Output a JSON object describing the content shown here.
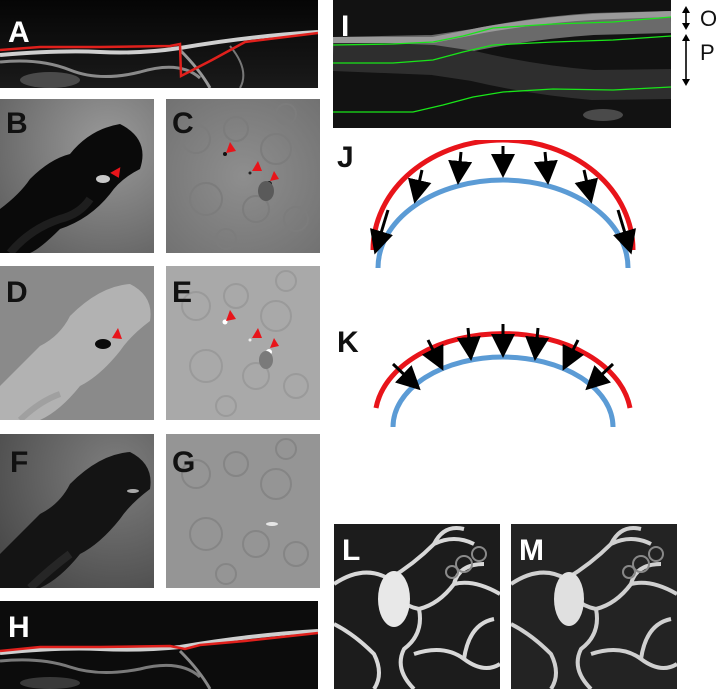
{
  "labels": {
    "A": "A",
    "B": "B",
    "C": "C",
    "D": "D",
    "E": "E",
    "F": "F",
    "G": "G",
    "H": "H",
    "I": "I",
    "J": "J",
    "K": "K",
    "L": "L",
    "M": "M"
  },
  "layer_labels": {
    "outer": "O",
    "inner": "P"
  },
  "colors": {
    "contour_red": "#e0201c",
    "arrow_head_red": "#e8141a",
    "layer_green": "#19e619",
    "outer_arc_red": "#e8141a",
    "inner_arc_blue": "#5b9bd5",
    "arrow_black": "#000000"
  }
}
